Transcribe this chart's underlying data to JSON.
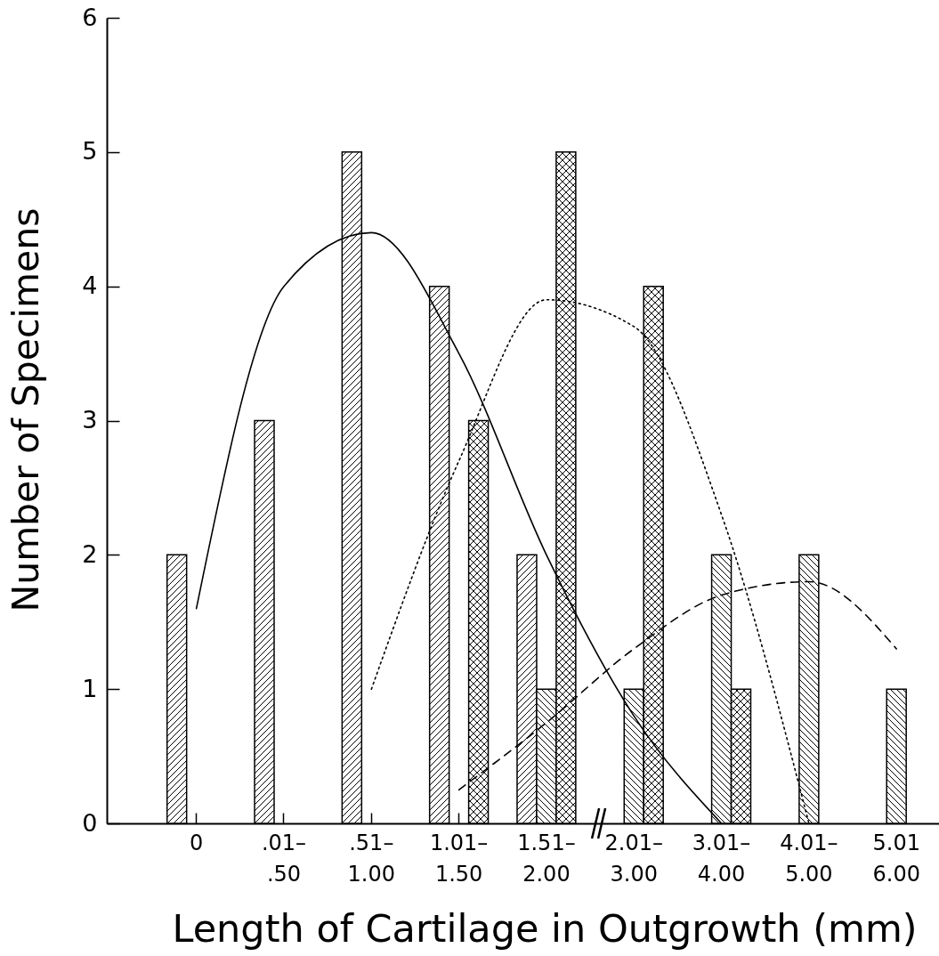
{
  "chart_data": {
    "type": "bar",
    "xlabel": "Length of Cartilage in Outgrowth (mm)",
    "ylabel": "Number of Specimens",
    "categories": [
      "0",
      ".01– .50",
      ".51– 1.00",
      "1.01– 1.50",
      "1.51– 2.00",
      "2.01– 3.00",
      "3.01– 4.00",
      "4.01– 5.00",
      "5.01 6.00"
    ],
    "ylim": [
      0,
      6
    ],
    "yticks": [
      0,
      1,
      2,
      3,
      4,
      5,
      6
    ],
    "series": [
      {
        "color": "#000000",
        "values": [
          2,
          3,
          5,
          4,
          2,
          null,
          null,
          null,
          null
        ]
      },
      {
        "color": "#000000",
        "values": [
          null,
          null,
          null,
          null,
          1,
          1,
          2,
          2,
          1
        ]
      },
      {
        "color": "#000000",
        "values": [
          null,
          null,
          null,
          3,
          5,
          4,
          1,
          null,
          null
        ]
      },
      {
        "type": "line",
        "color": "#000000",
        "line_style": "solid",
        "values": [
          1.6,
          4.0,
          4.4,
          3.5,
          2.0,
          0.8,
          0,
          null,
          null
        ]
      },
      {
        "type": "line",
        "color": "#000000",
        "line_style": "dotted",
        "values": [
          null,
          null,
          1.0,
          2.7,
          3.9,
          3.7,
          2.3,
          0,
          null
        ]
      },
      {
        "type": "line",
        "color": "#000000",
        "line_style": "dashed",
        "values": [
          null,
          null,
          null,
          0.25,
          0.75,
          1.3,
          1.7,
          1.8,
          1.3
        ]
      }
    ]
  }
}
